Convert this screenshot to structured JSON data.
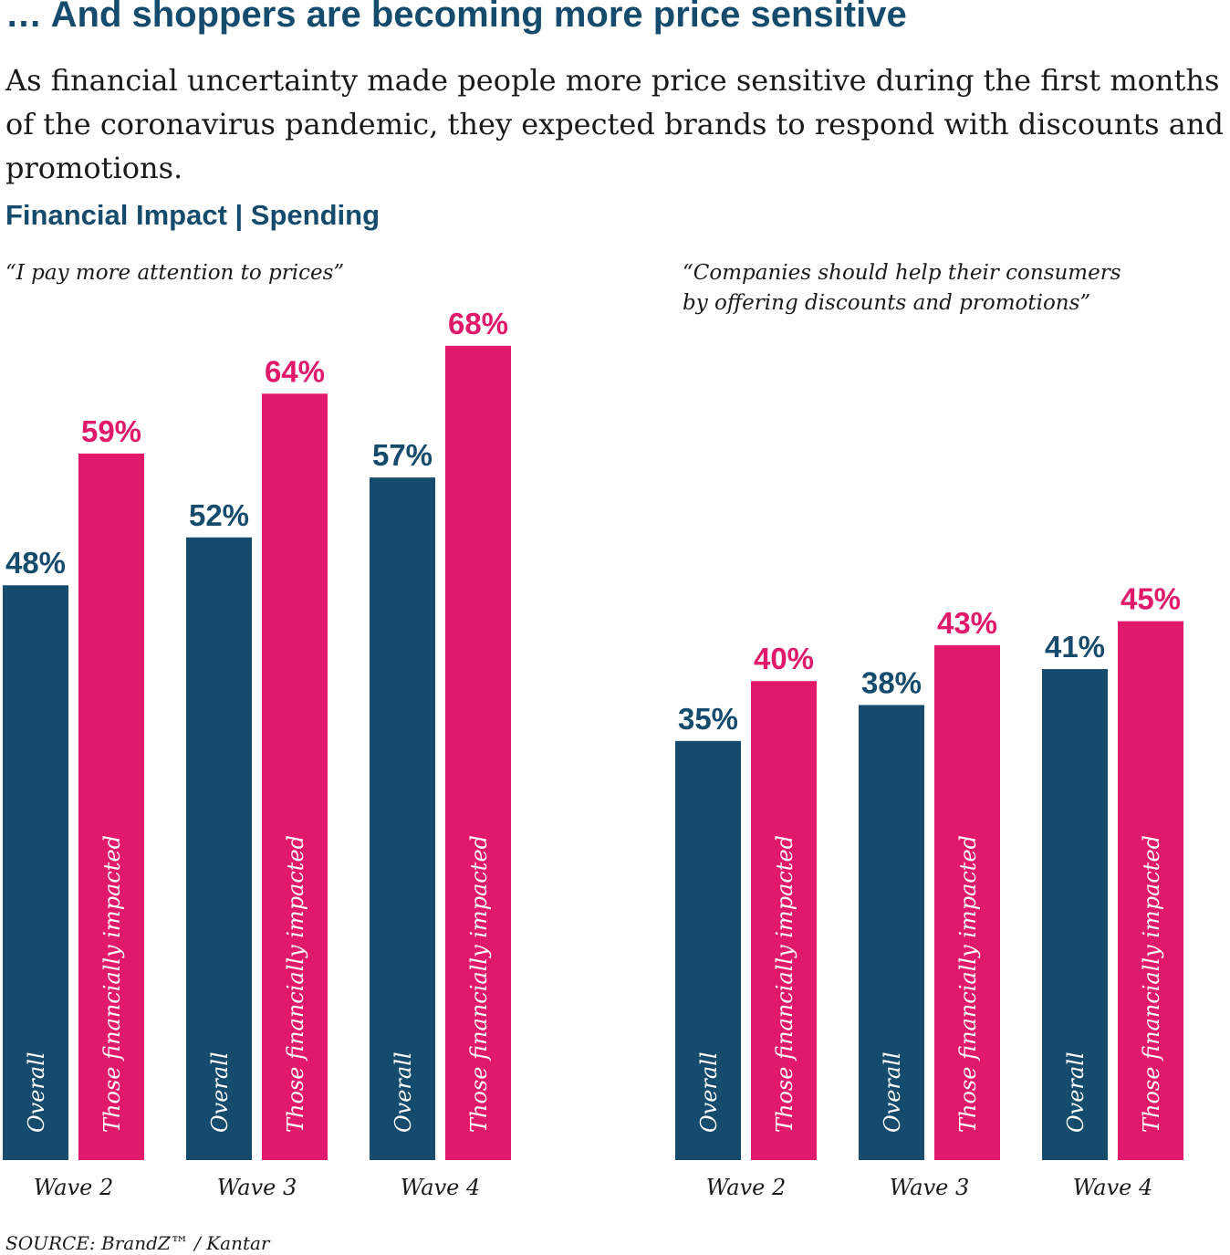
{
  "header": {
    "title": "… And shoppers are becoming more price sensitive",
    "subtitle": "As financial uncertainty made people more price sensitive during the first months of the coronavirus pandemic, they expected brands to respond with discounts and promotions.",
    "section": "Financial Impact | Spending"
  },
  "colors": {
    "overall": "#154b6d",
    "impacted": "#e0196b"
  },
  "chart_data": [
    {
      "type": "bar",
      "title": "“I pay more attention to prices”",
      "categories": [
        "Wave 2",
        "Wave 3",
        "Wave 4"
      ],
      "series": [
        {
          "name": "Overall",
          "values": [
            48,
            52,
            57
          ]
        },
        {
          "name": "Those financially impacted",
          "values": [
            59,
            64,
            68
          ]
        }
      ],
      "value_labels": [
        [
          "48%",
          "52%",
          "57%"
        ],
        [
          "59%",
          "64%",
          "68%"
        ]
      ],
      "unit": "%",
      "ylim": [
        0,
        73
      ],
      "grid": false
    },
    {
      "type": "bar",
      "title_lines": [
        "“Companies should help their consumers",
        "by offering discounts and promotions”"
      ],
      "categories": [
        "Wave 2",
        "Wave 3",
        "Wave 4"
      ],
      "series": [
        {
          "name": "Overall",
          "values": [
            35,
            38,
            41
          ]
        },
        {
          "name": "Those financially impacted",
          "values": [
            40,
            43,
            45
          ]
        }
      ],
      "value_labels": [
        [
          "35%",
          "38%",
          "41%"
        ],
        [
          "40%",
          "43%",
          "45%"
        ]
      ],
      "unit": "%",
      "ylim": [
        0,
        73
      ],
      "grid": false
    }
  ],
  "footer": {
    "source": "SOURCE: BrandZ™ / Kantar"
  }
}
